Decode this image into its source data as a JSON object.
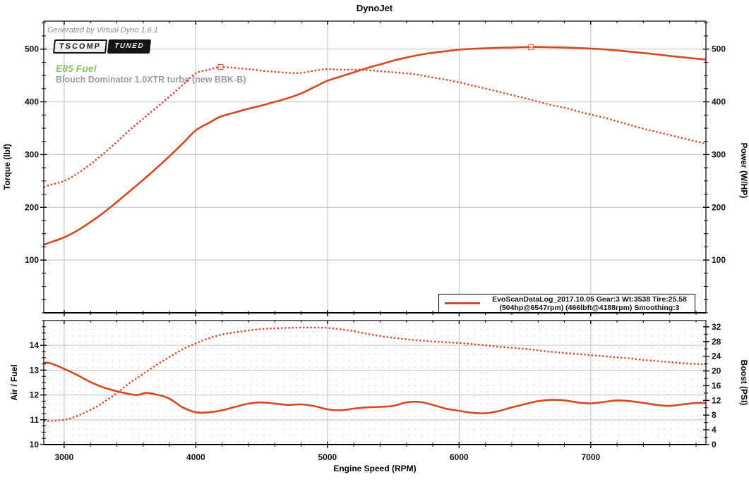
{
  "title": "DynoJet",
  "annotations": {
    "generated_by": "Generated by Virtual Dyno 1.6.1",
    "logo_primary": "TSCOMP",
    "logo_secondary": "TUNED",
    "fuel": "E85 Fuel",
    "setup": "Blouch Dominator 1.0XTR turbo (new BBK-B)"
  },
  "legend": {
    "line1": "EvoScanDataLog_2017.10.05 Gear:3 Wt:3538 Tire:25.58",
    "line2": "(504hp@6547rpm) (466lbft@4188rpm) Smoothing:3"
  },
  "colors": {
    "solid_curve": "#d6491e",
    "dotted_curve": "#dd452a",
    "gridline": "#c8c8c8",
    "dot_grid": "#d2d2d2",
    "axis": "#000000",
    "fuel_green": "#8fc06a",
    "setup_gray": "#9c9c9c"
  },
  "chart_data": [
    {
      "type": "line",
      "title": "DynoJet",
      "position": "top",
      "xlabel": "Engine Speed (RPM)",
      "ylabel_left": "Torque (lbf)",
      "ylabel_right": "Power (W/HP)",
      "xlim": [
        2845,
        7875
      ],
      "x_ticks": [
        3000,
        4000,
        5000,
        6000,
        7000
      ],
      "x_minor_step": 200,
      "ylim": [
        0,
        553
      ],
      "y_ticks": [
        100,
        200,
        300,
        400,
        500
      ],
      "y_minor_step": 25,
      "grid": "on",
      "legend_position": "bottom-right",
      "series": [
        {
          "name": "Power (W/HP)",
          "style": "solid",
          "peak_label": "504hp@6547rpm",
          "marker_at": [
            6547,
            504
          ],
          "points": [
            [
              2845,
              129
            ],
            [
              2900,
              134
            ],
            [
              3000,
              143
            ],
            [
              3100,
              156
            ],
            [
              3200,
              172
            ],
            [
              3300,
              190
            ],
            [
              3400,
              210
            ],
            [
              3500,
              231
            ],
            [
              3600,
              252
            ],
            [
              3700,
              274
            ],
            [
              3800,
              297
            ],
            [
              3900,
              321
            ],
            [
              4000,
              346
            ],
            [
              4100,
              360
            ],
            [
              4188,
              372
            ],
            [
              4300,
              380
            ],
            [
              4400,
              387
            ],
            [
              4500,
              393
            ],
            [
              4600,
              400
            ],
            [
              4700,
              407
            ],
            [
              4800,
              416
            ],
            [
              4900,
              428
            ],
            [
              5000,
              440
            ],
            [
              5100,
              448
            ],
            [
              5200,
              456
            ],
            [
              5300,
              464
            ],
            [
              5400,
              471
            ],
            [
              5500,
              478
            ],
            [
              5600,
              484
            ],
            [
              5700,
              489
            ],
            [
              5800,
              493
            ],
            [
              5900,
              496
            ],
            [
              6000,
              499
            ],
            [
              6100,
              500.5
            ],
            [
              6200,
              501.5
            ],
            [
              6300,
              502.5
            ],
            [
              6400,
              503
            ],
            [
              6547,
              504
            ],
            [
              6700,
              503.5
            ],
            [
              6800,
              503
            ],
            [
              6900,
              502
            ],
            [
              7000,
              501
            ],
            [
              7100,
              499.5
            ],
            [
              7200,
              497.5
            ],
            [
              7300,
              495
            ],
            [
              7400,
              492.5
            ],
            [
              7500,
              490
            ],
            [
              7600,
              487
            ],
            [
              7700,
              484.5
            ],
            [
              7800,
              482
            ],
            [
              7875,
              480
            ]
          ]
        },
        {
          "name": "Torque (lbft)",
          "style": "dotted",
          "peak_label": "466lbft@4188rpm",
          "marker_at": [
            4188,
            466
          ],
          "points": [
            [
              2845,
              238
            ],
            [
              2900,
              243
            ],
            [
              3000,
              250
            ],
            [
              3100,
              264
            ],
            [
              3200,
              282
            ],
            [
              3300,
              302
            ],
            [
              3400,
              324
            ],
            [
              3500,
              347
            ],
            [
              3600,
              368
            ],
            [
              3700,
              389
            ],
            [
              3800,
              410
            ],
            [
              3900,
              432
            ],
            [
              4000,
              454
            ],
            [
              4100,
              461
            ],
            [
              4188,
              466
            ],
            [
              4300,
              464
            ],
            [
              4400,
              462
            ],
            [
              4500,
              459
            ],
            [
              4600,
              457
            ],
            [
              4700,
              455
            ],
            [
              4800,
              455
            ],
            [
              4900,
              459
            ],
            [
              5000,
              462
            ],
            [
              5100,
              461
            ],
            [
              5200,
              461
            ],
            [
              5300,
              460
            ],
            [
              5400,
              458
            ],
            [
              5500,
              456
            ],
            [
              5600,
              454
            ],
            [
              5700,
              451
            ],
            [
              5800,
              446
            ],
            [
              5900,
              442
            ],
            [
              6000,
              437
            ],
            [
              6100,
              431
            ],
            [
              6200,
              425
            ],
            [
              6300,
              419
            ],
            [
              6400,
              413
            ],
            [
              6547,
              404
            ],
            [
              6700,
              394
            ],
            [
              6800,
              389
            ],
            [
              6900,
              382
            ],
            [
              7000,
              376
            ],
            [
              7100,
              370
            ],
            [
              7200,
              363
            ],
            [
              7300,
              356
            ],
            [
              7400,
              349
            ],
            [
              7500,
              343
            ],
            [
              7600,
              337
            ],
            [
              7700,
              331
            ],
            [
              7800,
              325
            ],
            [
              7875,
              321
            ]
          ]
        }
      ]
    },
    {
      "type": "line",
      "position": "bottom",
      "xlabel": "Engine Speed (RPM)",
      "ylabel_left": "Air / Fuel",
      "ylabel_right": "Boost (PSI)",
      "xlim": [
        2845,
        7875
      ],
      "x_ticks": [
        3000,
        4000,
        5000,
        6000,
        7000
      ],
      "x_minor_step": 200,
      "ylim_left": [
        10,
        15
      ],
      "y_ticks_left": [
        10,
        11,
        12,
        13,
        14
      ],
      "y_minor_step_left": 0.25,
      "ylim_right": [
        0,
        33.7
      ],
      "y_ticks_right": [
        0,
        4,
        8,
        12,
        16,
        20,
        24,
        28,
        32
      ],
      "y_minor_step_right": 2,
      "grid": "on",
      "series": [
        {
          "name": "Air / Fuel",
          "axis": "left",
          "style": "solid",
          "points": [
            [
              2845,
              13.3
            ],
            [
              2900,
              13.27
            ],
            [
              3000,
              13.05
            ],
            [
              3100,
              12.8
            ],
            [
              3200,
              12.52
            ],
            [
              3300,
              12.3
            ],
            [
              3400,
              12.15
            ],
            [
              3500,
              12.03
            ],
            [
              3560,
              12.0
            ],
            [
              3620,
              12.08
            ],
            [
              3700,
              12.02
            ],
            [
              3800,
              11.85
            ],
            [
              3900,
              11.5
            ],
            [
              4000,
              11.3
            ],
            [
              4100,
              11.3
            ],
            [
              4200,
              11.38
            ],
            [
              4300,
              11.52
            ],
            [
              4400,
              11.65
            ],
            [
              4500,
              11.7
            ],
            [
              4600,
              11.65
            ],
            [
              4700,
              11.6
            ],
            [
              4800,
              11.62
            ],
            [
              4900,
              11.55
            ],
            [
              5000,
              11.42
            ],
            [
              5100,
              11.38
            ],
            [
              5200,
              11.45
            ],
            [
              5300,
              11.5
            ],
            [
              5400,
              11.52
            ],
            [
              5500,
              11.56
            ],
            [
              5600,
              11.7
            ],
            [
              5700,
              11.72
            ],
            [
              5800,
              11.6
            ],
            [
              5900,
              11.45
            ],
            [
              6000,
              11.36
            ],
            [
              6100,
              11.28
            ],
            [
              6200,
              11.26
            ],
            [
              6300,
              11.35
            ],
            [
              6400,
              11.5
            ],
            [
              6500,
              11.63
            ],
            [
              6600,
              11.75
            ],
            [
              6700,
              11.8
            ],
            [
              6800,
              11.78
            ],
            [
              6900,
              11.7
            ],
            [
              7000,
              11.66
            ],
            [
              7100,
              11.72
            ],
            [
              7200,
              11.78
            ],
            [
              7300,
              11.75
            ],
            [
              7400,
              11.68
            ],
            [
              7500,
              11.6
            ],
            [
              7600,
              11.56
            ],
            [
              7700,
              11.62
            ],
            [
              7800,
              11.68
            ],
            [
              7875,
              11.68
            ]
          ]
        },
        {
          "name": "Boost (PSI)",
          "axis": "right",
          "style": "dotted",
          "points": [
            [
              2845,
              6.3
            ],
            [
              3000,
              6.7
            ],
            [
              3100,
              7.8
            ],
            [
              3200,
              9.4
            ],
            [
              3300,
              11.5
            ],
            [
              3400,
              14.0
            ],
            [
              3500,
              16.8
            ],
            [
              3600,
              19.2
            ],
            [
              3700,
              21.6
            ],
            [
              3800,
              23.8
            ],
            [
              3900,
              25.9
            ],
            [
              4000,
              27.5
            ],
            [
              4100,
              28.9
            ],
            [
              4200,
              29.9
            ],
            [
              4300,
              30.5
            ],
            [
              4400,
              31.0
            ],
            [
              4500,
              31.4
            ],
            [
              4600,
              31.6
            ],
            [
              4700,
              31.7
            ],
            [
              4800,
              31.8
            ],
            [
              4900,
              31.8
            ],
            [
              5000,
              31.7
            ],
            [
              5100,
              31.3
            ],
            [
              5200,
              30.8
            ],
            [
              5300,
              30.1
            ],
            [
              5400,
              29.5
            ],
            [
              5500,
              29.0
            ],
            [
              5600,
              28.6
            ],
            [
              5700,
              28.3
            ],
            [
              5800,
              28.0
            ],
            [
              5900,
              27.8
            ],
            [
              6000,
              27.6
            ],
            [
              6100,
              27.3
            ],
            [
              6200,
              27.0
            ],
            [
              6300,
              26.6
            ],
            [
              6400,
              26.3
            ],
            [
              6500,
              26.0
            ],
            [
              6600,
              25.6
            ],
            [
              6700,
              25.2
            ],
            [
              6800,
              24.9
            ],
            [
              6900,
              24.6
            ],
            [
              7000,
              24.3
            ],
            [
              7100,
              24.0
            ],
            [
              7200,
              23.7
            ],
            [
              7300,
              23.4
            ],
            [
              7400,
              23.0
            ],
            [
              7500,
              22.7
            ],
            [
              7600,
              22.4
            ],
            [
              7700,
              22.1
            ],
            [
              7800,
              21.9
            ],
            [
              7875,
              21.8
            ]
          ]
        }
      ]
    }
  ]
}
